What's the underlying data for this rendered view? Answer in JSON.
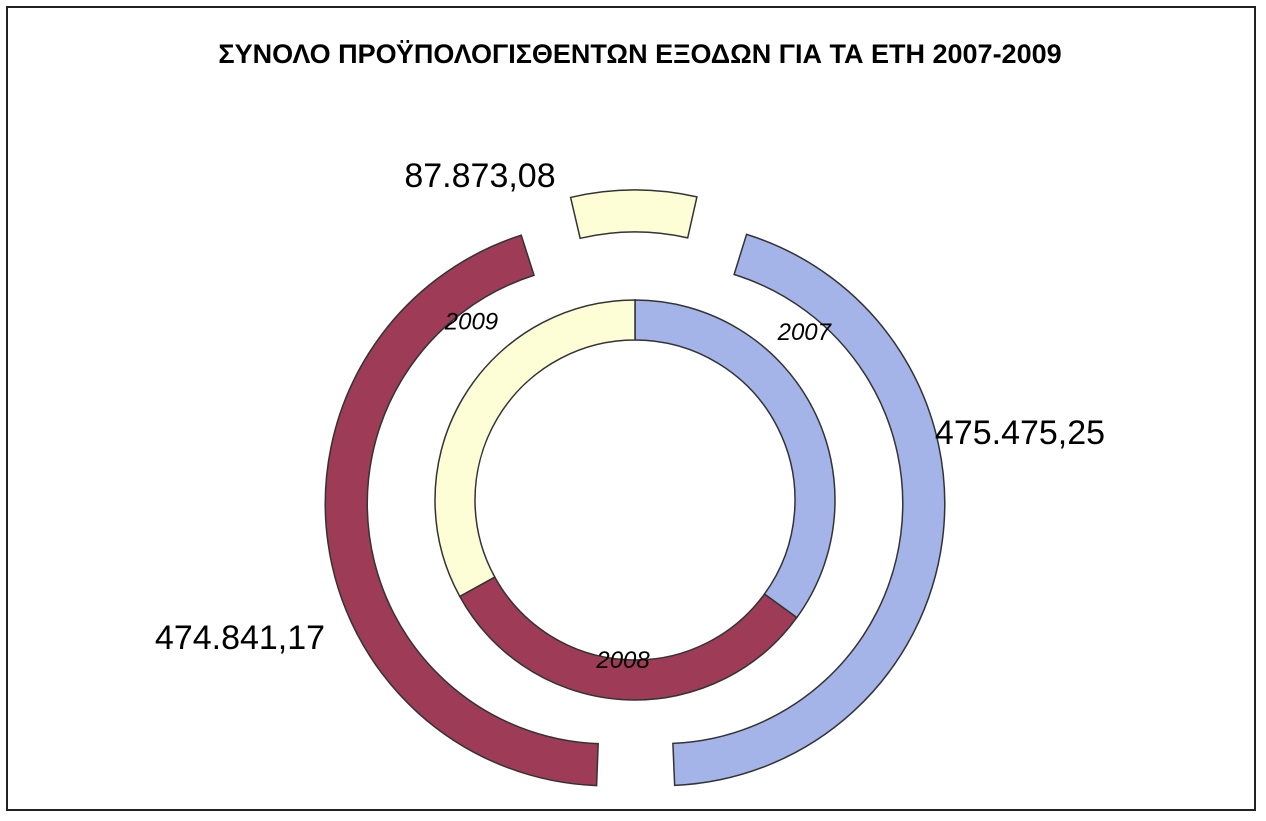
{
  "chart_data": {
    "type": "doughnut",
    "title": "ΣΥΝΟΛΟ ΠΡΟΫΠΟΛΟΓΙΣΘΕΝΤΩΝ ΕΞΟΔΩΝ ΓΙΑ ΤΑ ΕΤΗ 2007-2009",
    "categories": [
      "2007",
      "2008",
      "2009"
    ],
    "values": [
      475475.25,
      474841.17,
      87873.08
    ],
    "value_labels": [
      "475.475,25",
      "474.841,17",
      "87.873,08"
    ],
    "inner_values": [
      35,
      32,
      33
    ],
    "colors": [
      "#a4b3e8",
      "#9e3b57",
      "#fdfdd6"
    ]
  }
}
